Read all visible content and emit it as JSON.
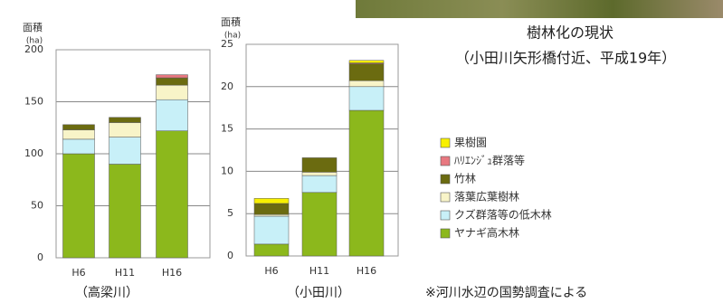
{
  "legend": {
    "items": [
      {
        "name": "ヤナギ高木林",
        "color": "#8cb81c"
      },
      {
        "name": "クズ群落等の低木林",
        "color": "#c8f0f8"
      },
      {
        "name": "落葉広葉樹林",
        "color": "#f8f4c8"
      },
      {
        "name": "竹林",
        "color": "#6b6b10"
      },
      {
        "name": "ﾊﾘｴﾝｼﾞｭ群落等",
        "color": "#e87880"
      },
      {
        "name": "果樹園",
        "color": "#f8f000"
      }
    ]
  },
  "chart_data": [
    {
      "type": "bar",
      "stacked": true,
      "grid": true,
      "subtitle": "（高梁川）",
      "y_label": "面積",
      "y_unit": "(ha)",
      "categories": [
        "H6",
        "H11",
        "H16"
      ],
      "series": [
        {
          "values": [
            100,
            90,
            122
          ]
        },
        {
          "values": [
            14,
            26,
            30
          ]
        },
        {
          "values": [
            9,
            14,
            14
          ]
        },
        {
          "values": [
            5,
            5,
            7
          ]
        },
        {
          "values": [
            0,
            0,
            3
          ]
        },
        {
          "values": [
            0,
            0,
            0
          ]
        }
      ],
      "ylim": [
        0,
        200
      ],
      "yticks": [
        0,
        50,
        100,
        150,
        200
      ]
    },
    {
      "type": "bar",
      "stacked": true,
      "grid": true,
      "subtitle": "（小田川）",
      "y_label": "面積",
      "y_unit": "(ha)",
      "categories": [
        "H6",
        "H11",
        "H16"
      ],
      "series": [
        {
          "values": [
            1.4,
            7.5,
            17.2
          ]
        },
        {
          "values": [
            3.3,
            2.0,
            2.8
          ]
        },
        {
          "values": [
            0.2,
            0.4,
            0.7
          ]
        },
        {
          "values": [
            1.3,
            1.7,
            2.0
          ]
        },
        {
          "values": [
            0,
            0,
            0.1
          ]
        },
        {
          "values": [
            0.6,
            0,
            0.3
          ]
        }
      ],
      "ylim": [
        0,
        25
      ],
      "yticks": [
        0,
        5,
        10,
        15,
        20,
        25
      ]
    }
  ],
  "caption": {
    "title": "樹林化の現状",
    "location": "（小田川矢形橋付近、平成19年）"
  },
  "note": "※河川水辺の国勢調査による"
}
